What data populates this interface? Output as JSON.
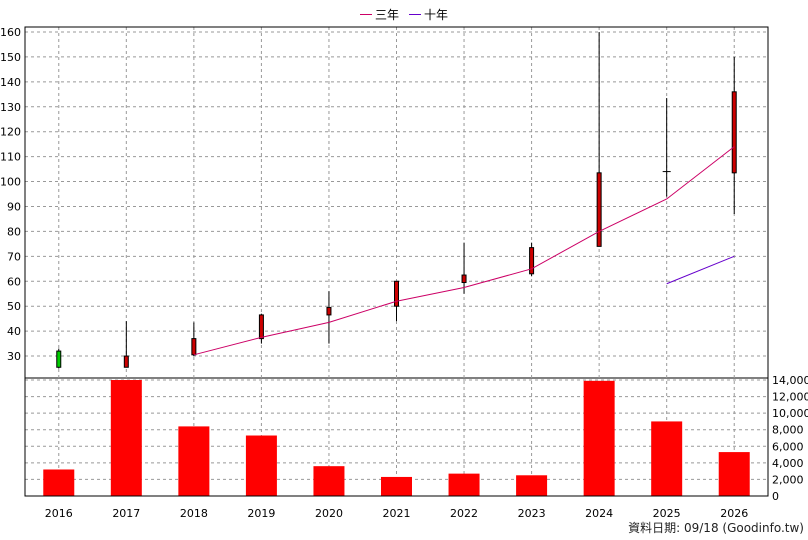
{
  "legend": [
    {
      "name": "三年",
      "color": "#cc0066"
    },
    {
      "name": "十年",
      "color": "#6600cc"
    }
  ],
  "source_text": "資料日期: 09/18  (Goodinfo.tw)",
  "colors": {
    "up_candle": "#cc0000",
    "down_candle": "#00cc00",
    "volume_bar": "#ff0000",
    "grid": "#999999",
    "axis": "#000000"
  },
  "chart_data": {
    "type": "candlestick",
    "x_categories": [
      "2016",
      "2017",
      "2018",
      "2019",
      "2020",
      "2021",
      "2022",
      "2023",
      "2024",
      "2025",
      "2026"
    ],
    "price_axis": {
      "min": 22,
      "max": 162,
      "ticks": [
        30,
        40,
        50,
        60,
        70,
        80,
        90,
        100,
        110,
        120,
        130,
        140,
        150,
        160
      ]
    },
    "volume_axis": {
      "min": 0,
      "max": 14000,
      "ticks": [
        0,
        2000,
        4000,
        6000,
        8000,
        10000,
        12000,
        14000
      ],
      "tick_labels": [
        "0",
        "2,000",
        "4,000",
        "6,000",
        "8,000",
        "10,000",
        "12,000",
        "14,000"
      ]
    },
    "candles": [
      {
        "year": "2016",
        "open": 32,
        "high": 33,
        "low": 25,
        "close": 25.5
      },
      {
        "year": "2017",
        "open": 25.5,
        "high": 44,
        "low": 25.5,
        "close": 30
      },
      {
        "year": "2018",
        "open": 30.5,
        "high": 43.5,
        "low": 30,
        "close": 37
      },
      {
        "year": "2019",
        "open": 37,
        "high": 47,
        "low": 35,
        "close": 46.5
      },
      {
        "year": "2020",
        "open": 46.5,
        "high": 56,
        "low": 35,
        "close": 49.5
      },
      {
        "year": "2021",
        "open": 50,
        "high": 60,
        "low": 44,
        "close": 60
      },
      {
        "year": "2022",
        "open": 59.5,
        "high": 75.5,
        "low": 55,
        "close": 62.5
      },
      {
        "year": "2023",
        "open": 63,
        "high": 75.5,
        "low": 62,
        "close": 73.5
      },
      {
        "year": "2024",
        "open": 74,
        "high": 160,
        "low": 74,
        "close": 103.5
      },
      {
        "year": "2025",
        "open": 103.5,
        "high": 133.5,
        "low": 94,
        "close": 104
      },
      {
        "year": "2026",
        "open": 103.5,
        "high": 150,
        "low": 87,
        "close": 136
      }
    ],
    "series": [
      {
        "name": "三年",
        "x": [
          "2018",
          "2019",
          "2020",
          "2021",
          "2022",
          "2023",
          "2024",
          "2025",
          "2026"
        ],
        "values": [
          30.5,
          37.5,
          43.5,
          52,
          57.5,
          65,
          80,
          93,
          114
        ]
      },
      {
        "name": "十年",
        "x": [
          "2025",
          "2026"
        ],
        "values": [
          59,
          70
        ]
      }
    ],
    "volume": [
      3200,
      14000,
      8400,
      7300,
      3600,
      2300,
      2700,
      2500,
      13900,
      9000,
      5300
    ],
    "grid": true
  }
}
